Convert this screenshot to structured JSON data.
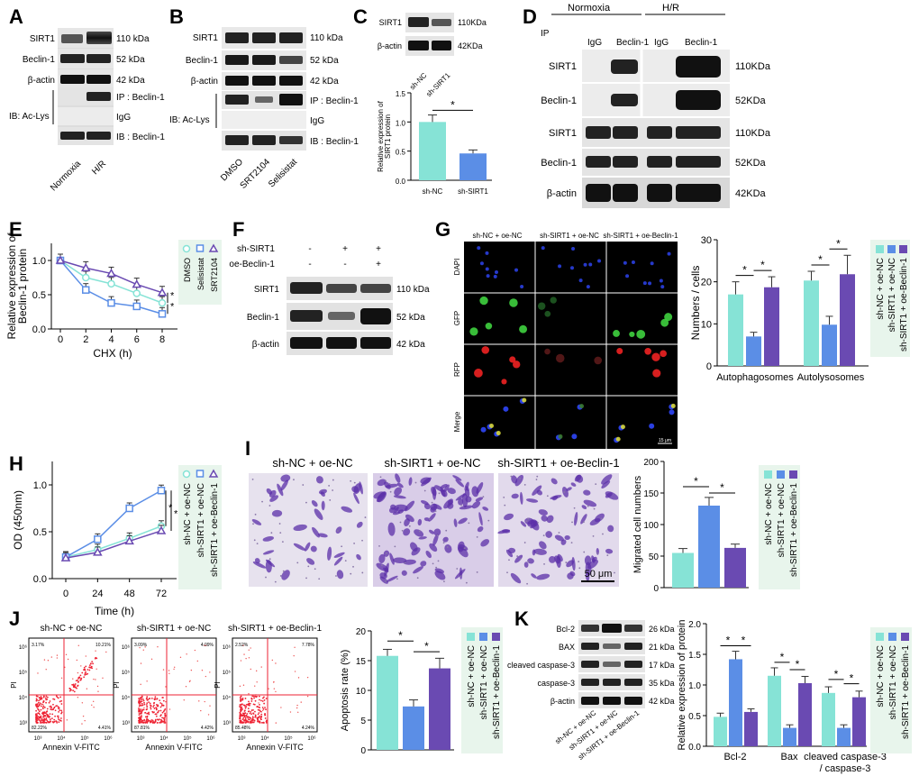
{
  "colors": {
    "cyan": "#86E3D6",
    "blue": "#5B8EE6",
    "purple": "#6A4AB2",
    "green_legend_bg": "#E8F5EC",
    "blot_dark": "#1A1A1A",
    "blot_bg": "#D9D9D9"
  },
  "panels": [
    "A",
    "B",
    "C",
    "D",
    "E",
    "F",
    "G",
    "H",
    "I",
    "J",
    "K"
  ],
  "panelA": {
    "bands": [
      "SIRT1",
      "Beclin-1",
      "β-actin"
    ],
    "sizes": [
      "110 kDa",
      "52 kDa",
      "42 kDa"
    ],
    "ib": "IB:  Ac-Lys",
    "ip": "IP : Beclin-1",
    "igg": "IgG",
    "ib2": "IB : Beclin-1",
    "lanes": [
      "Normoxia",
      "H/R"
    ]
  },
  "panelB": {
    "bands": [
      "SIRT1",
      "Beclin-1",
      "β-actin"
    ],
    "sizes": [
      "110 kDa",
      "52 kDa",
      "42 kDa"
    ],
    "ib": "IB:  Ac-Lys",
    "ip": "IP : Beclin-1",
    "igg": "IgG",
    "ib2": "IB : Beclin-1",
    "lanes": [
      "DMSO",
      "SRT2104",
      "Selisistat"
    ]
  },
  "panelC": {
    "bands": [
      "SIRT1",
      "β-actin"
    ],
    "sizes": [
      "110KDa",
      "42KDa"
    ],
    "lanes": [
      "sh-NC",
      "sh-SIRT1"
    ],
    "sig": "*"
  },
  "panelD": {
    "conditions": [
      "Normoxia",
      "H/R"
    ],
    "ip": "IP",
    "lanes": [
      "IgG",
      "Beclin-1",
      "IgG",
      "Beclin-1"
    ],
    "bands": [
      "SIRT1",
      "Beclin-1",
      "SIRT1",
      "Beclin-1",
      "β-actin"
    ],
    "sizes": [
      "110KDa",
      "52KDa",
      "110KDa",
      "52KDa",
      "42KDa"
    ]
  },
  "panelF": {
    "rows": [
      "sh-SIRT1",
      "oe-Beclin-1"
    ],
    "signs": [
      [
        "-",
        "+",
        "+"
      ],
      [
        "-",
        "-",
        "+"
      ]
    ],
    "bands": [
      "SIRT1",
      "Beclin-1",
      "β-actin"
    ],
    "sizes": [
      "110 kDa",
      "52 kDa",
      "42 kDa"
    ]
  },
  "panelG": {
    "conditions": [
      "sh-NC + oe-NC",
      "sh-SIRT1 + oe-NC",
      "sh-SIRT1 + oe-Beclin-1"
    ],
    "channels": [
      "DAPI",
      "GFP",
      "RFP",
      "Merge"
    ],
    "scale": "15 μm"
  },
  "panelI": {
    "conditions": [
      "sh-NC + oe-NC",
      "sh-SIRT1 + oe-NC",
      "sh-SIRT1 + oe-Beclin-1"
    ],
    "scale": "50 μm"
  },
  "panelJ": {
    "conditions": [
      "sh-NC + oe-NC",
      "sh-SIRT1 + oe-NC",
      "sh-SIRT1 + oe-Beclin-1"
    ],
    "xlabel": "Annexin V-FITC",
    "ylabel": "PI",
    "ticks": [
      "10³",
      "10⁴",
      "10⁵",
      "10⁶"
    ],
    "quadrants": [
      [
        "3.17%",
        "10.21%",
        "82.22%",
        "4.41%"
      ],
      [
        "3.09%",
        "4.09%",
        "87.81%",
        "4.42%"
      ],
      [
        "2.52%",
        "7.78%",
        "85.48%",
        "4.24%"
      ]
    ]
  },
  "panelK": {
    "bands": [
      "Bcl-2",
      "BAX",
      "cleaved caspase-3",
      "caspase-3",
      "β-actin"
    ],
    "sizes": [
      "26 kDa",
      "21 kDa",
      "17 kDa",
      "35 kDa",
      "42 kDa"
    ],
    "lanes": [
      "sh-NC + oe-NC",
      "sh-SIRT1 + oe-NC",
      "sh-SIRT1 + oe-Beclin-1"
    ]
  },
  "chart_data": [
    {
      "id": "C",
      "type": "bar",
      "categories": [
        "sh-NC",
        "sh-SIRT1"
      ],
      "values": [
        1.0,
        0.46
      ],
      "errors": [
        0.12,
        0.06
      ],
      "ylabel": "Relative expression of SIRT1 protein",
      "ylim": [
        0,
        1.5
      ],
      "yticks": [
        0.0,
        0.5,
        1.0,
        1.5
      ],
      "ytick_labels": [
        "0.0",
        "0.5",
        "1.0",
        "1.5"
      ]
    },
    {
      "id": "E",
      "type": "line",
      "x": [
        0,
        2,
        4,
        6,
        8
      ],
      "series": [
        {
          "name": "DMSO",
          "values": [
            1.0,
            0.75,
            0.66,
            0.52,
            0.38
          ]
        },
        {
          "name": "Selisistat",
          "values": [
            1.0,
            0.57,
            0.38,
            0.33,
            0.22
          ]
        },
        {
          "name": "SRT2104",
          "values": [
            1.0,
            0.89,
            0.81,
            0.65,
            0.53
          ]
        }
      ],
      "xlabel": "CHX (h)",
      "ylabel": "Relative expression of Beclin-1 protein",
      "ylim": [
        0,
        1.25
      ],
      "yticks": [
        0.0,
        0.5,
        1.0
      ],
      "ytick_labels": [
        "0.0",
        "0.5",
        "1.0"
      ],
      "xtick_labels": [
        "0",
        "2",
        "4",
        "6",
        "8"
      ],
      "sig": [
        "*",
        "*"
      ]
    },
    {
      "id": "G",
      "type": "bar",
      "categories": [
        "Autophagosomes",
        "Autolysosomes"
      ],
      "series": [
        {
          "name": "sh-NC + oe-NC",
          "values": [
            17.0,
            20.3
          ],
          "errors": [
            3.0,
            2.2
          ]
        },
        {
          "name": "sh-SIRT1 + oe-NC",
          "values": [
            7.0,
            9.8
          ],
          "errors": [
            1.0,
            2.0
          ]
        },
        {
          "name": "sh-SIRT1 + oe-Beclin-1",
          "values": [
            18.7,
            21.8
          ],
          "errors": [
            2.5,
            4.5
          ]
        }
      ],
      "ylabel": "Numbers / cells",
      "ylim": [
        0,
        30
      ],
      "yticks": [
        0,
        10,
        20,
        30
      ],
      "ytick_labels": [
        "0",
        "10",
        "20",
        "30"
      ]
    },
    {
      "id": "H",
      "type": "line",
      "x": [
        0,
        24,
        48,
        72
      ],
      "series": [
        {
          "name": "sh-NC + oe-NC",
          "values": [
            0.23,
            0.31,
            0.43,
            0.56
          ]
        },
        {
          "name": "sh-SIRT1 + oe-NC",
          "values": [
            0.23,
            0.42,
            0.75,
            0.94
          ]
        },
        {
          "name": "sh-SIRT1 + oe-Beclin-1",
          "values": [
            0.22,
            0.28,
            0.4,
            0.51
          ]
        }
      ],
      "xlabel": "Time (h)",
      "ylabel": "OD (450nm)",
      "ylim": [
        0,
        1.25
      ],
      "yticks": [
        0.0,
        0.5,
        1.0
      ],
      "ytick_labels": [
        "0.0",
        "0.5",
        "1.0"
      ],
      "xtick_labels": [
        "0",
        "24",
        "48",
        "72"
      ],
      "sig": [
        "*",
        "*"
      ]
    },
    {
      "id": "I",
      "type": "bar",
      "categories": [
        "sh-NC + oe-NC",
        "sh-SIRT1 + oe-NC",
        "sh-SIRT1 + oe-Beclin-1"
      ],
      "values": [
        55,
        130,
        63
      ],
      "errors": [
        7,
        13,
        6
      ],
      "ylabel": "Migrated cell numbers",
      "ylim": [
        0,
        200
      ],
      "yticks": [
        0,
        50,
        100,
        150,
        200
      ],
      "ytick_labels": [
        "0",
        "50",
        "100",
        "150",
        "200"
      ]
    },
    {
      "id": "J",
      "type": "bar",
      "categories": [
        "sh-NC + oe-NC",
        "sh-SIRT1 + oe-NC",
        "sh-SIRT1 + oe-Beclin-1"
      ],
      "values": [
        15.8,
        7.3,
        13.7
      ],
      "errors": [
        1.1,
        1.1,
        1.7
      ],
      "ylabel": "Apoptosis rate (%)",
      "ylim": [
        0,
        20
      ],
      "yticks": [
        0,
        5,
        10,
        15,
        20
      ],
      "ytick_labels": [
        "0",
        "5",
        "10",
        "15",
        "20"
      ]
    },
    {
      "id": "K",
      "type": "bar",
      "categories": [
        "Bcl-2",
        "Bax",
        "cleaved caspase-3 / caspase-3"
      ],
      "series": [
        {
          "name": "sh-NC + oe-NC",
          "values": [
            0.48,
            1.15,
            0.87
          ],
          "errors": [
            0.06,
            0.13,
            0.1
          ]
        },
        {
          "name": "sh-SIRT1 + oe-NC",
          "values": [
            1.42,
            0.3,
            0.3
          ],
          "errors": [
            0.13,
            0.05,
            0.05
          ]
        },
        {
          "name": "sh-SIRT1 + oe-Beclin-1",
          "values": [
            0.56,
            1.03,
            0.8
          ],
          "errors": [
            0.05,
            0.11,
            0.1
          ]
        }
      ],
      "ylabel": "Relative expression of protein",
      "ylim": [
        0,
        2.0
      ],
      "yticks": [
        0.0,
        0.5,
        1.0,
        1.5,
        2.0
      ],
      "ytick_labels": [
        "0.0",
        "0.5",
        "1.0",
        "1.5",
        "2.0"
      ]
    }
  ]
}
